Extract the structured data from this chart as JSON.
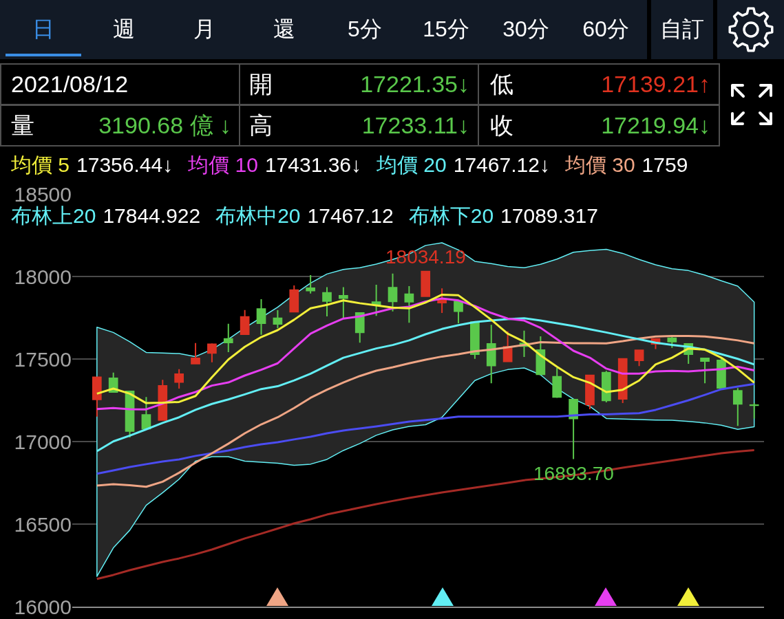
{
  "chart_data": {
    "type": "candlestick",
    "categories": [
      null,
      null,
      null,
      null,
      null,
      null,
      null,
      null,
      null,
      null,
      null,
      null,
      null,
      null,
      null,
      null,
      null,
      null,
      null,
      null,
      null,
      null,
      null,
      null,
      null,
      null,
      null,
      null,
      null,
      null,
      null,
      null,
      null,
      null,
      null,
      null,
      null,
      null,
      null,
      null,
      null
    ],
    "ohlc": [
      [
        17255,
        17390,
        17151,
        17390
      ],
      [
        17383,
        17418,
        17300,
        17300
      ],
      [
        17304,
        17304,
        17025,
        17064
      ],
      [
        17161,
        17270,
        17078,
        17078
      ],
      [
        17130,
        17374,
        17130,
        17338
      ],
      [
        17360,
        17439,
        17321,
        17408
      ],
      [
        17472,
        17597,
        17472,
        17504
      ],
      [
        17536,
        17595,
        17480,
        17590
      ],
      [
        17622,
        17714,
        17542,
        17600
      ],
      [
        17650,
        17797,
        17650,
        17755
      ],
      [
        17803,
        17862,
        17647,
        17717
      ],
      [
        17747,
        17796,
        17686,
        17712
      ],
      [
        17786,
        17946,
        17786,
        17918
      ],
      [
        17929,
        18008,
        17897,
        17915
      ],
      [
        17901,
        17935,
        17758,
        17851
      ],
      [
        17883,
        17935,
        17747,
        17869
      ],
      [
        17779,
        17779,
        17599,
        17661
      ],
      [
        17845,
        17950,
        17761,
        17829
      ],
      [
        17932,
        18018,
        17789,
        17849
      ],
      [
        17893,
        17942,
        17720,
        17847
      ],
      [
        17880,
        18034.19,
        17880,
        18030
      ],
      [
        17842,
        17928,
        17779,
        17858
      ],
      [
        17849,
        17849,
        17717,
        17790
      ],
      [
        17724,
        17724,
        17501,
        17529
      ],
      [
        17592,
        17707,
        17353,
        17460
      ],
      [
        17485,
        17668,
        17485,
        17574
      ],
      [
        17595,
        17672,
        17513,
        17578
      ],
      [
        17554,
        17638,
        17407,
        17407
      ],
      [
        17393,
        17446,
        17265,
        17270
      ],
      [
        17254,
        17254,
        16893.7,
        17140
      ],
      [
        17224,
        17401,
        17196,
        17401
      ],
      [
        17418,
        17428,
        17238,
        17249
      ],
      [
        17258,
        17501,
        17233,
        17501
      ],
      [
        17492,
        17553,
        17457,
        17553
      ],
      [
        17592,
        17622,
        17560,
        17622
      ],
      [
        17626,
        17633,
        17568,
        17605
      ],
      [
        17592,
        17592,
        17471,
        17529
      ],
      [
        17504,
        17508,
        17353,
        17488
      ],
      [
        17492,
        17508,
        17325,
        17325
      ],
      [
        17307,
        17324,
        17095,
        17228
      ],
      [
        17221.35,
        17233.11,
        17139.21,
        17219.94
      ]
    ],
    "colors": [
      "#dc3223",
      "#5ac84b",
      "#5ac84b",
      "#5ac84b",
      "#dc3223",
      "#dc3223",
      "#dc3223",
      "#dc3223",
      "#5ac84b",
      "#dc3223",
      "#5ac84b",
      "#5ac84b",
      "#dc3223",
      "#5ac84b",
      "#5ac84b",
      "#5ac84b",
      "#5ac84b",
      "#5ac84b",
      "#5ac84b",
      "#5ac84b",
      "#dc3223",
      "#dc3223",
      "#5ac84b",
      "#5ac84b",
      "#5ac84b",
      "#dc3223",
      "#5ac84b",
      "#5ac84b",
      "#5ac84b",
      "#5ac84b",
      "#dc3223",
      "#5ac84b",
      "#dc3223",
      "#dc3223",
      "#dc3223",
      "#5ac84b",
      "#5ac84b",
      "#5ac84b",
      "#5ac84b",
      "#5ac84b",
      "#5ac84b"
    ],
    "series": [
      {
        "name": "均價 5",
        "type": "line",
        "color": "#f2ef3a",
        "values": [
          17290,
          17321,
          17290,
          17233,
          17235,
          17240,
          17276,
          17390,
          17497,
          17574,
          17633,
          17675,
          17738,
          17807,
          17828,
          17855,
          17838,
          17825,
          17811,
          17807,
          17842,
          17890,
          17886,
          17814,
          17738,
          17654,
          17605,
          17522,
          17453,
          17390,
          17356,
          17300,
          17314,
          17370,
          17467,
          17508,
          17564,
          17557,
          17508,
          17439,
          17356.44
        ]
      },
      {
        "name": "均價 10",
        "type": "line",
        "color": "#e63ef0",
        "values": [
          17197,
          17203,
          17196,
          17195,
          17230,
          17270,
          17300,
          17339,
          17358,
          17400,
          17435,
          17474,
          17564,
          17654,
          17703,
          17745,
          17758,
          17782,
          17807,
          17817,
          17848,
          17867,
          17855,
          17821,
          17779,
          17745,
          17733,
          17689,
          17620,
          17550,
          17508,
          17442,
          17411,
          17411,
          17425,
          17428,
          17425,
          17432,
          17439,
          17453,
          17431.36
        ]
      },
      {
        "name": "均價 20",
        "type": "line",
        "color": "#62eef4",
        "values": [
          16942,
          17001,
          17036,
          17074,
          17113,
          17147,
          17192,
          17228,
          17255,
          17286,
          17318,
          17335,
          17370,
          17411,
          17460,
          17508,
          17536,
          17564,
          17585,
          17613,
          17650,
          17682,
          17705,
          17724,
          17733,
          17742,
          17747,
          17733,
          17717,
          17700,
          17680,
          17661,
          17640,
          17620,
          17599,
          17585,
          17574,
          17557,
          17529,
          17501,
          17467.12
        ],
        "upper": [
          17693,
          17661,
          17605,
          17540,
          17536,
          17533,
          17515,
          17558,
          17620,
          17689,
          17751,
          17814,
          17890,
          17960,
          18015,
          18043,
          18053,
          18075,
          18103,
          18136,
          18188,
          18204,
          18161,
          18092,
          18078,
          18060,
          18053,
          18074,
          18105,
          18147,
          18157,
          18165,
          18140,
          18103,
          18071,
          18047,
          18036,
          18008,
          17974,
          17942,
          17844.922
        ],
        "lower": [
          16183,
          16356,
          16463,
          16614,
          16690,
          16772,
          16881,
          16908,
          16908,
          16881,
          16875,
          16869,
          16856,
          16863,
          16892,
          16946,
          16988,
          17038,
          17071,
          17092,
          17102,
          17147,
          17258,
          17370,
          17411,
          17436,
          17446,
          17404,
          17321,
          17258,
          17213,
          17140,
          17136,
          17133,
          17130,
          17129,
          17122,
          17113,
          17099,
          17074,
          17089.317
        ]
      },
      {
        "name": "均價 30",
        "type": "line",
        "color": "#efa585",
        "values": [
          16733,
          16742,
          16735,
          16726,
          16757,
          16811,
          16872,
          16929,
          16987,
          17050,
          17104,
          17147,
          17203,
          17265,
          17314,
          17358,
          17397,
          17429,
          17450,
          17474,
          17496,
          17515,
          17529,
          17547,
          17557,
          17571,
          17585,
          17602,
          17599,
          17596,
          17596,
          17595,
          17608,
          17624,
          17636,
          17640,
          17640,
          17636,
          17626,
          17613,
          17595
        ]
      },
      {
        "type": "line",
        "color": "#4b4cf2",
        "values": [
          16805,
          16825,
          16846,
          16863,
          16879,
          16892,
          16913,
          16929,
          16946,
          16967,
          16983,
          16996,
          17013,
          17029,
          17050,
          17067,
          17079,
          17092,
          17106,
          17121,
          17130,
          17140,
          17151,
          17151,
          17151,
          17151,
          17151,
          17151,
          17151,
          17158,
          17165,
          17165,
          17169,
          17172,
          17192,
          17221,
          17250,
          17283,
          17317,
          17333,
          17349
        ]
      },
      {
        "type": "line",
        "color": "#a52a25",
        "values": [
          16168,
          16192,
          16221,
          16246,
          16271,
          16292,
          16317,
          16346,
          16379,
          16413,
          16442,
          16473,
          16504,
          16529,
          16558,
          16579,
          16600,
          16621,
          16640,
          16658,
          16675,
          16692,
          16706,
          16721,
          16735,
          16750,
          16766,
          16775,
          16785,
          16796,
          16810,
          16825,
          16842,
          16856,
          16871,
          16885,
          16900,
          16915,
          16929,
          16940,
          16948
        ]
      }
    ],
    "ylim": [
      16000,
      18500
    ],
    "yticks": [
      16000,
      16500,
      17000,
      17500,
      18000,
      18500
    ],
    "grid": "y",
    "legend": "top",
    "tick_labels": "y",
    "annotations": [
      "日",
      "週",
      "月",
      "還",
      "5分",
      "15分",
      "30分",
      "60分",
      "自訂",
      "2021/08/12",
      "開",
      "17221.35↓",
      "低",
      "17139.21↑",
      "量",
      "3190.68 億 ↓",
      "高",
      "17233.11↓",
      "收",
      "17219.94↓",
      "17356.44↓",
      "17431.36↓",
      "17467.12↓",
      "1759",
      "布林上20",
      "17844.922",
      "布林中20",
      "17467.12",
      "布林下20",
      "17089.317",
      {
        "text": "18034.19",
        "y": 18034.19
      },
      {
        "text": "16893.70",
        "y": 16893.7
      }
    ]
  }
}
